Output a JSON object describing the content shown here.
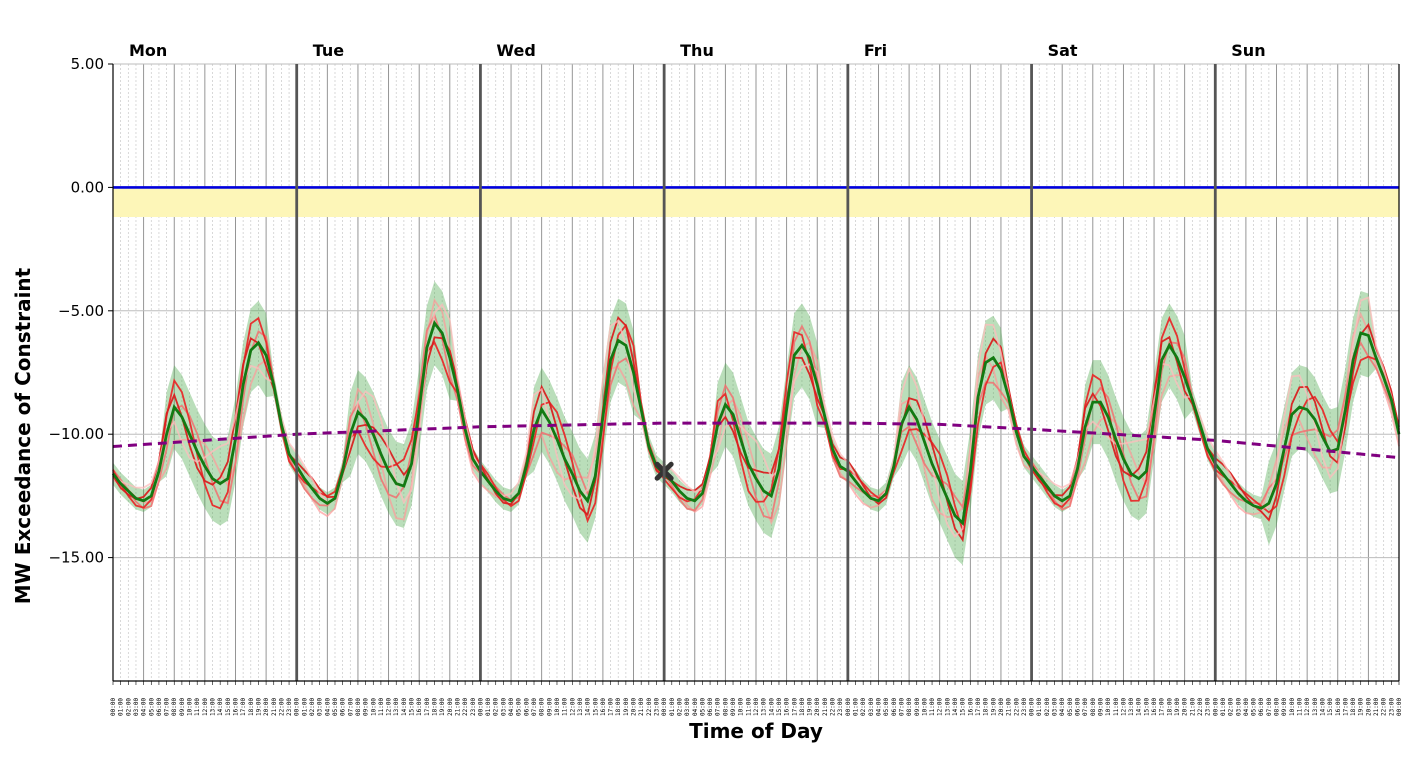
{
  "chart_data": {
    "type": "line",
    "xlabel": "Time of Day",
    "ylabel": "MW Exceedance of Constraint",
    "ylim": [
      -20.0,
      5.0
    ],
    "yticks": [
      5.0,
      0.0,
      -5.0,
      -10.0,
      -15.0
    ],
    "ytick_labels": [
      "5.00",
      "0.00",
      "−5.00",
      "−10.00",
      "−15.00"
    ],
    "days": [
      "Mon",
      "Tue",
      "Wed",
      "Thu",
      "Fri",
      "Sat",
      "Sun"
    ],
    "hour_labels": [
      "00:00",
      "01:00",
      "02:00",
      "03:00",
      "04:00",
      "05:00",
      "06:00",
      "07:00",
      "08:00",
      "09:00",
      "10:00",
      "11:00",
      "12:00",
      "13:00",
      "14:00",
      "15:00",
      "16:00",
      "17:00",
      "18:00",
      "19:00",
      "20:00",
      "21:00",
      "22:00",
      "23:00"
    ],
    "grid": true,
    "constraint_line": {
      "value": 0.0,
      "color": "#0000dd"
    },
    "warning_band": {
      "from": -1.2,
      "to": 0.0,
      "color": "#fdf6b8"
    },
    "trend": {
      "color": "#800080",
      "x": [
        0,
        24,
        48,
        72,
        96,
        108,
        120,
        144,
        168
      ],
      "y": [
        -10.5,
        -10.0,
        -9.7,
        -9.55,
        -9.55,
        -9.6,
        -9.8,
        -10.25,
        -10.95
      ]
    },
    "current_marker": {
      "x": 72,
      "y": -11.5,
      "color": "#333333"
    },
    "mean_series": {
      "color": "#137a13",
      "x": [
        0,
        1,
        2,
        3,
        4,
        5,
        6,
        7,
        8,
        9,
        10,
        11,
        12,
        13,
        14,
        15,
        16,
        17,
        18,
        19,
        20,
        21,
        22,
        23,
        24,
        25,
        26,
        27,
        28,
        29,
        30,
        31,
        32,
        33,
        34,
        35,
        36,
        37,
        38,
        39,
        40,
        41,
        42,
        43,
        44,
        45,
        46,
        47,
        48,
        49,
        50,
        51,
        52,
        53,
        54,
        55,
        56,
        57,
        58,
        59,
        60,
        61,
        62,
        63,
        64,
        65,
        66,
        67,
        68,
        69,
        70,
        71,
        72,
        73,
        74,
        75,
        76,
        77,
        78,
        79,
        80,
        81,
        82,
        83,
        84,
        85,
        86,
        87,
        88,
        89,
        90,
        91,
        92,
        93,
        94,
        95,
        96,
        97,
        98,
        99,
        100,
        101,
        102,
        103,
        104,
        105,
        106,
        107,
        108,
        109,
        110,
        111,
        112,
        113,
        114,
        115,
        116,
        117,
        118,
        119,
        120,
        121,
        122,
        123,
        124,
        125,
        126,
        127,
        128,
        129,
        130,
        131,
        132,
        133,
        134,
        135,
        136,
        137,
        138,
        139,
        140,
        141,
        142,
        143,
        144,
        145,
        146,
        147,
        148,
        149,
        150,
        151,
        152,
        153,
        154,
        155,
        156,
        157,
        158,
        159,
        160,
        161,
        162,
        163,
        164,
        165,
        166,
        167,
        168
      ],
      "y": [
        -11.6,
        -12.0,
        -12.3,
        -12.6,
        -12.7,
        -12.5,
        -11.5,
        -10.0,
        -8.9,
        -9.3,
        -10.0,
        -10.7,
        -11.3,
        -11.8,
        -12.0,
        -11.8,
        -10.2,
        -8.0,
        -6.6,
        -6.3,
        -6.8,
        -8.0,
        -9.6,
        -10.8,
        -11.3,
        -11.8,
        -12.2,
        -12.6,
        -12.8,
        -12.6,
        -11.5,
        -10.0,
        -9.1,
        -9.4,
        -10.0,
        -10.8,
        -11.5,
        -12.0,
        -12.1,
        -11.2,
        -9.0,
        -6.5,
        -5.5,
        -5.9,
        -6.9,
        -8.2,
        -9.8,
        -11.0,
        -11.5,
        -11.9,
        -12.3,
        -12.6,
        -12.7,
        -12.4,
        -11.3,
        -9.8,
        -9.0,
        -9.5,
        -10.2,
        -11.0,
        -11.6,
        -12.3,
        -12.7,
        -11.7,
        -9.3,
        -7.0,
        -6.2,
        -6.4,
        -7.5,
        -9.0,
        -10.5,
        -11.3,
        -11.6,
        -11.9,
        -12.3,
        -12.6,
        -12.7,
        -12.4,
        -11.2,
        -9.6,
        -8.8,
        -9.2,
        -10.2,
        -11.2,
        -11.8,
        -12.3,
        -12.5,
        -11.4,
        -9.0,
        -6.8,
        -6.4,
        -6.9,
        -8.0,
        -9.3,
        -10.6,
        -11.3,
        -11.5,
        -11.9,
        -12.3,
        -12.6,
        -12.7,
        -12.4,
        -11.3,
        -9.6,
        -8.9,
        -9.4,
        -10.3,
        -11.2,
        -11.9,
        -12.6,
        -13.3,
        -13.6,
        -11.5,
        -8.5,
        -7.1,
        -6.9,
        -7.4,
        -8.5,
        -9.9,
        -10.9,
        -11.3,
        -11.7,
        -12.1,
        -12.5,
        -12.7,
        -12.5,
        -11.4,
        -9.7,
        -8.7,
        -8.7,
        -9.3,
        -10.2,
        -11.0,
        -11.6,
        -11.8,
        -11.5,
        -9.3,
        -7.0,
        -6.4,
        -6.9,
        -7.7,
        -8.6,
        -9.6,
        -10.6,
        -11.2,
        -11.6,
        -12.0,
        -12.4,
        -12.7,
        -12.9,
        -13.0,
        -12.8,
        -12.0,
        -10.6,
        -9.2,
        -8.9,
        -9.0,
        -9.4,
        -10.1,
        -10.7,
        -10.6,
        -9.0,
        -7.0,
        -5.9,
        -6.0,
        -6.9,
        -7.7,
        -8.6,
        -10.0
      ]
    }
  }
}
